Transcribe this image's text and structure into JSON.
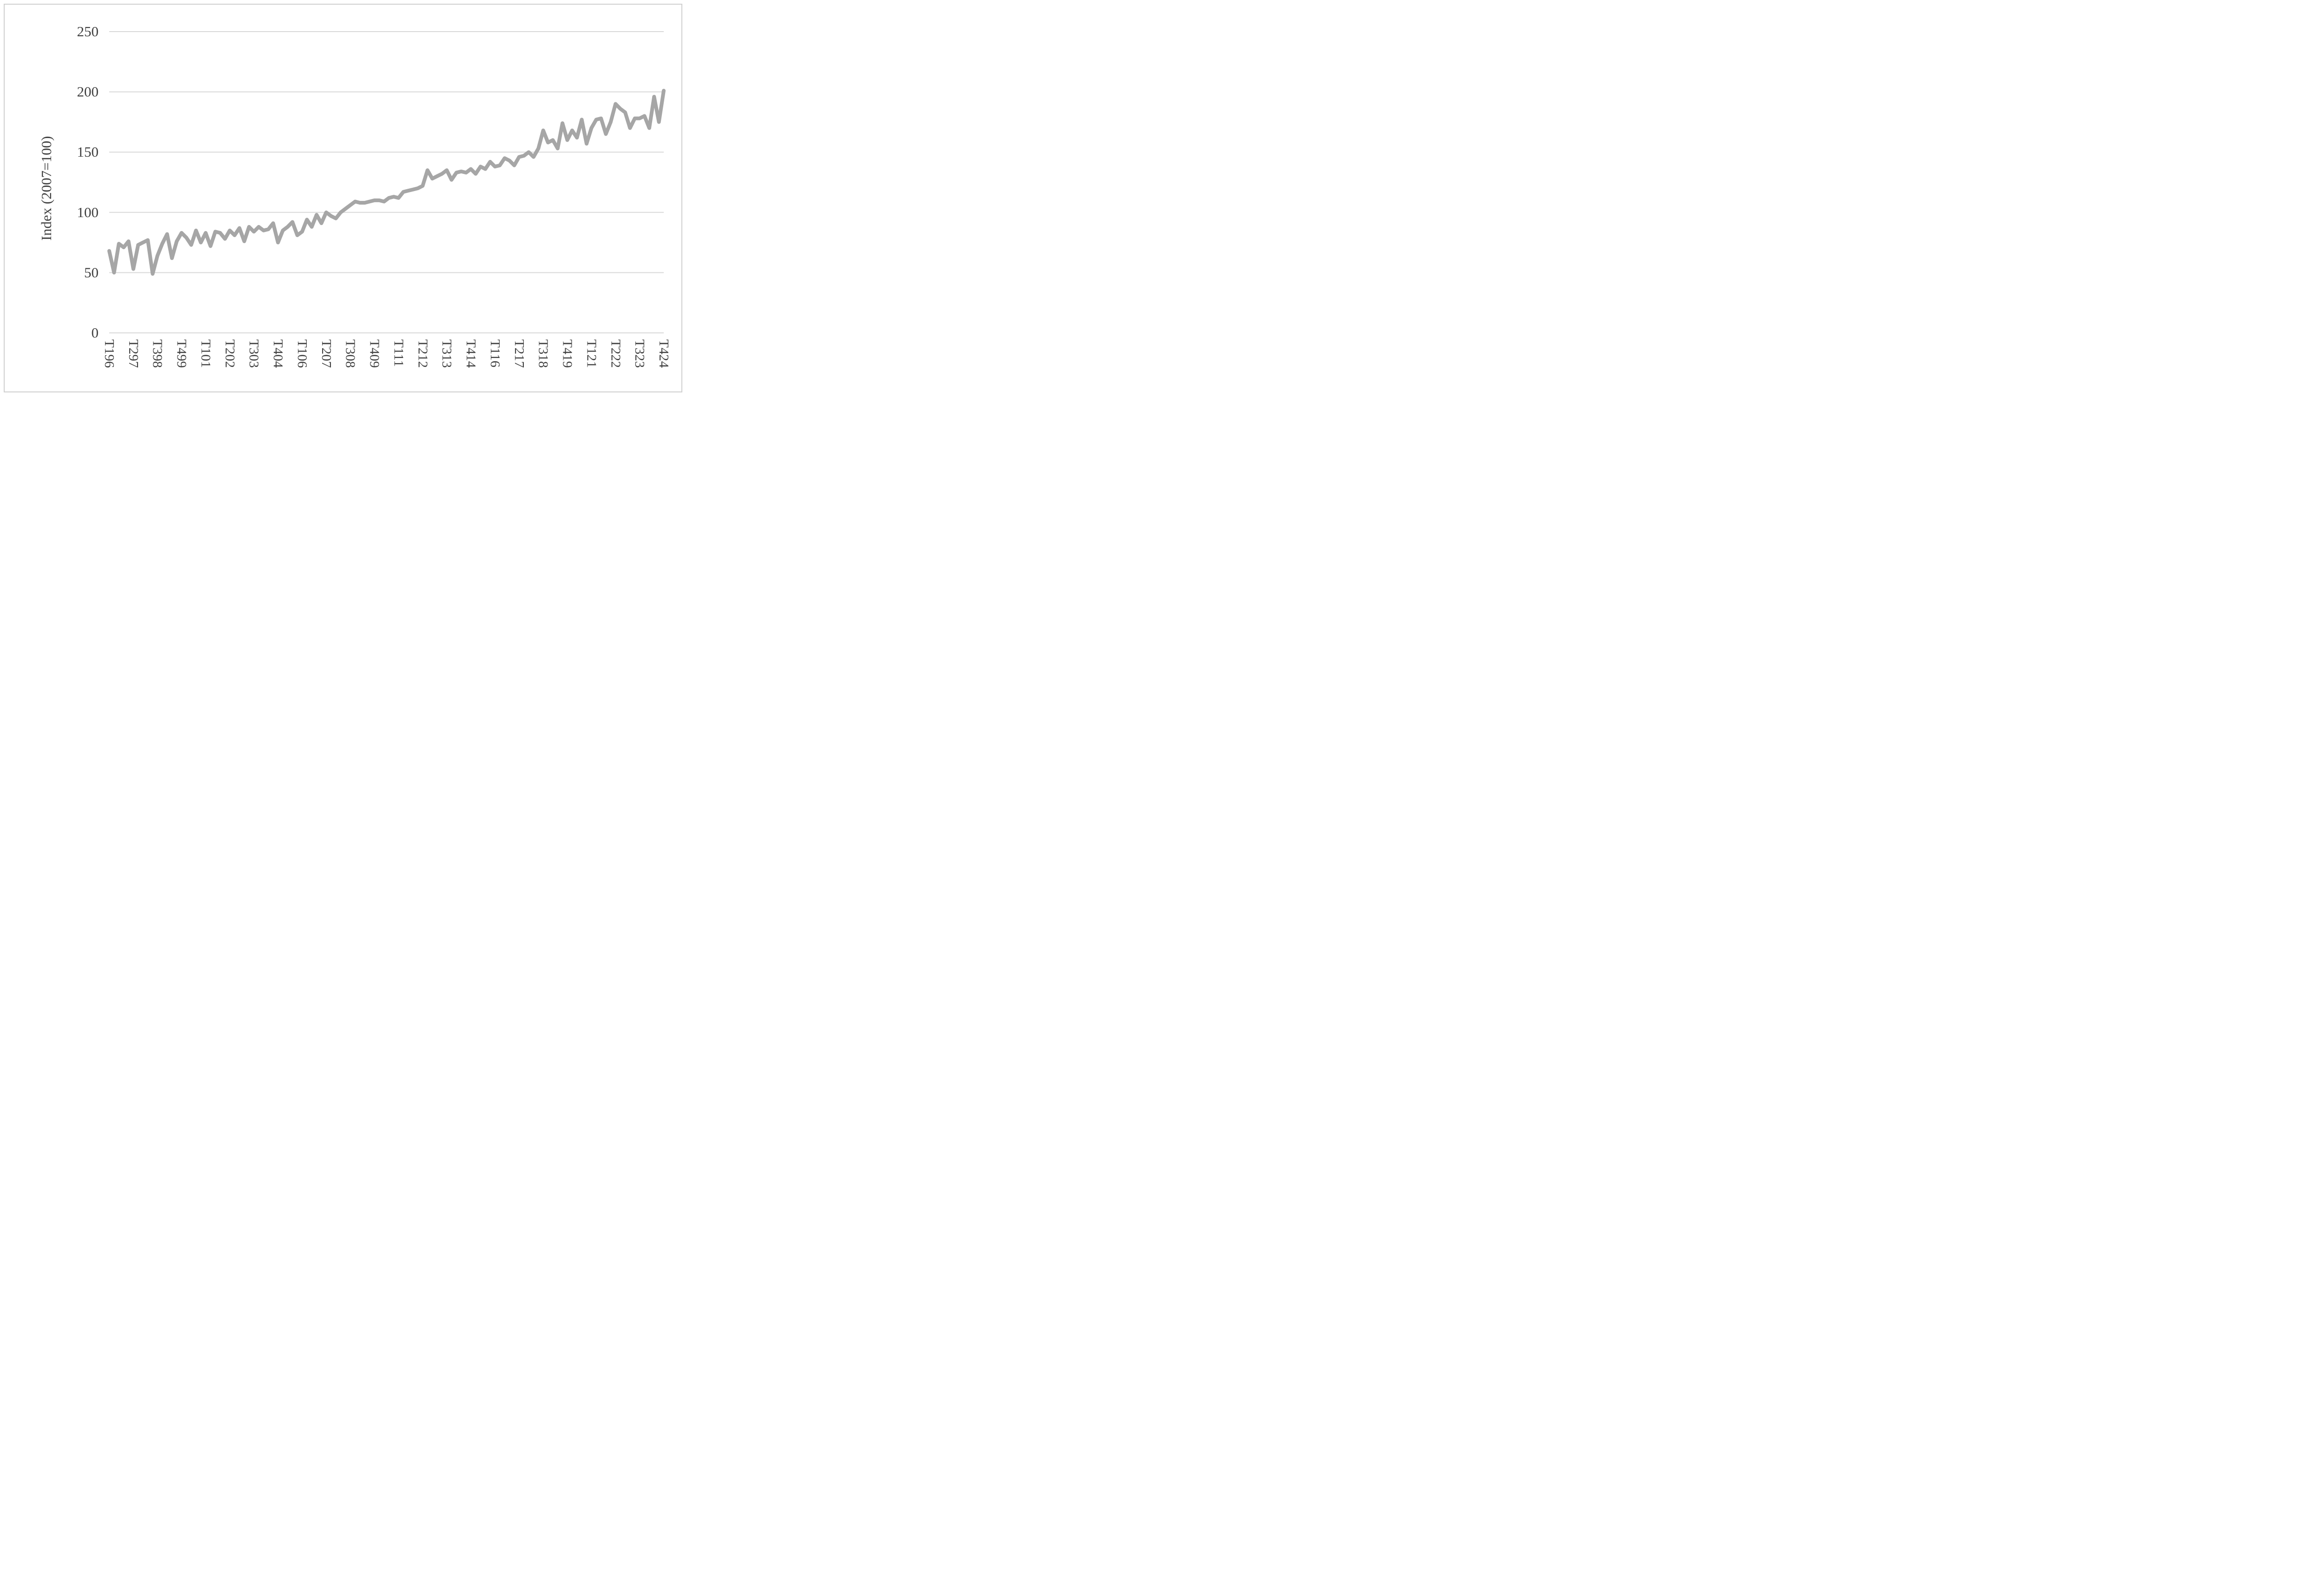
{
  "chart_data": {
    "type": "line",
    "title": "",
    "xlabel": "",
    "ylabel": "Index (2007=100)",
    "ylim": [
      0,
      250
    ],
    "yticks": [
      0,
      50,
      100,
      150,
      200,
      250
    ],
    "grid": "horizontal",
    "legend": "none",
    "line_color": "#a6a6a6",
    "gridline_color": "#d9d9d9",
    "text_color": "#404040",
    "frame_color": "#cfcfcf",
    "n_points": 116,
    "x_tick_every": 5,
    "x_tick_labels": [
      "T196",
      "T297",
      "T398",
      "T499",
      "T101",
      "T202",
      "T303",
      "T404",
      "T106",
      "T207",
      "T308",
      "T409",
      "T111",
      "T212",
      "T313",
      "T414",
      "T116",
      "T217",
      "T318",
      "T419",
      "T121",
      "T222",
      "T323",
      "T424"
    ],
    "series": [
      {
        "name": "Index (2007=100)",
        "values": [
          68,
          50,
          74,
          71,
          76,
          53,
          73,
          75,
          77,
          49,
          64,
          74,
          82,
          62,
          76,
          83,
          79,
          73,
          85,
          75,
          83,
          72,
          84,
          83,
          78,
          85,
          81,
          87,
          76,
          88,
          84,
          88,
          85,
          86,
          91,
          75,
          85,
          88,
          92,
          81,
          84,
          94,
          88,
          98,
          91,
          100,
          97,
          95,
          100,
          103,
          106,
          109,
          108,
          108,
          109,
          110,
          110,
          109,
          112,
          113,
          112,
          117,
          118,
          119,
          120,
          122,
          135,
          128,
          130,
          132,
          135,
          127,
          133,
          134,
          133,
          136,
          132,
          138,
          136,
          142,
          138,
          139,
          145,
          143,
          139,
          146,
          147,
          150,
          146,
          153,
          168,
          158,
          160,
          153,
          174,
          160,
          168,
          162,
          177,
          157,
          170,
          177,
          178,
          165,
          175,
          190,
          186,
          183,
          170,
          178,
          178,
          180,
          170,
          196,
          175,
          201
        ]
      }
    ]
  }
}
